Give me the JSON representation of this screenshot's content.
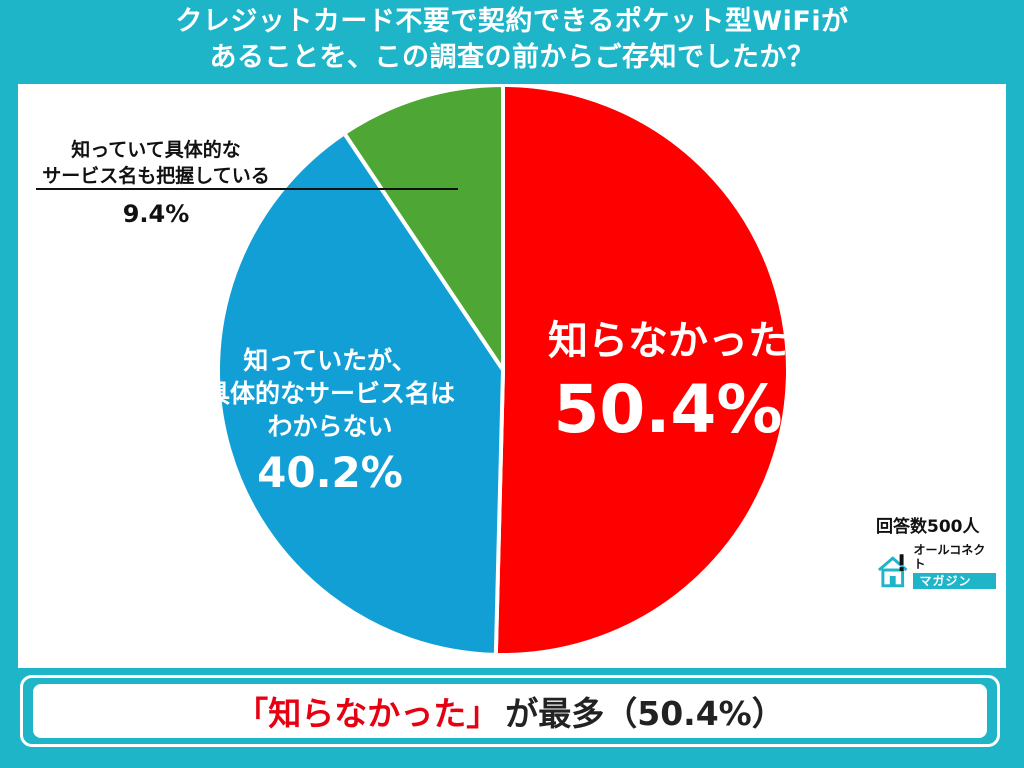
{
  "title_line1": "クレジットカード不要で契約できるポケット型WiFiが",
  "title_line2": "あることを、この調査の前からご存知でしたか？",
  "respondents": "回答数500人",
  "logo": {
    "line1": "オールコネクト",
    "line2": "マガジン",
    "icon": "house-exclamation-icon"
  },
  "conclusion": {
    "highlight": "「知らなかった」",
    "rest": "が最多（50.4%）"
  },
  "colors": {
    "red": "#ff0000",
    "blue": "#129fd6",
    "green": "#4ea635",
    "accent": "#1fb5c9"
  },
  "chart_data": {
    "type": "pie",
    "title": "クレジットカード不要で契約できるポケット型WiFiがあることを、この調査の前からご存知でしたか？",
    "slices": [
      {
        "label": "知らなかった",
        "value": 50.4,
        "display": "50.4%",
        "color": "#ff0000"
      },
      {
        "label": "知っていたが、具体的なサービス名はわからない",
        "value": 40.2,
        "display": "40.2%",
        "color": "#129fd6"
      },
      {
        "label": "知っていて具体的なサービス名も把握している",
        "value": 9.4,
        "display": "9.4%",
        "color": "#4ea635"
      }
    ],
    "label_lines": [
      [
        "知らなかった"
      ],
      [
        "知っていたが、",
        "具体的なサービス名は",
        "わからない"
      ],
      [
        "知っていて具体的な",
        "サービス名も把握している"
      ]
    ]
  }
}
